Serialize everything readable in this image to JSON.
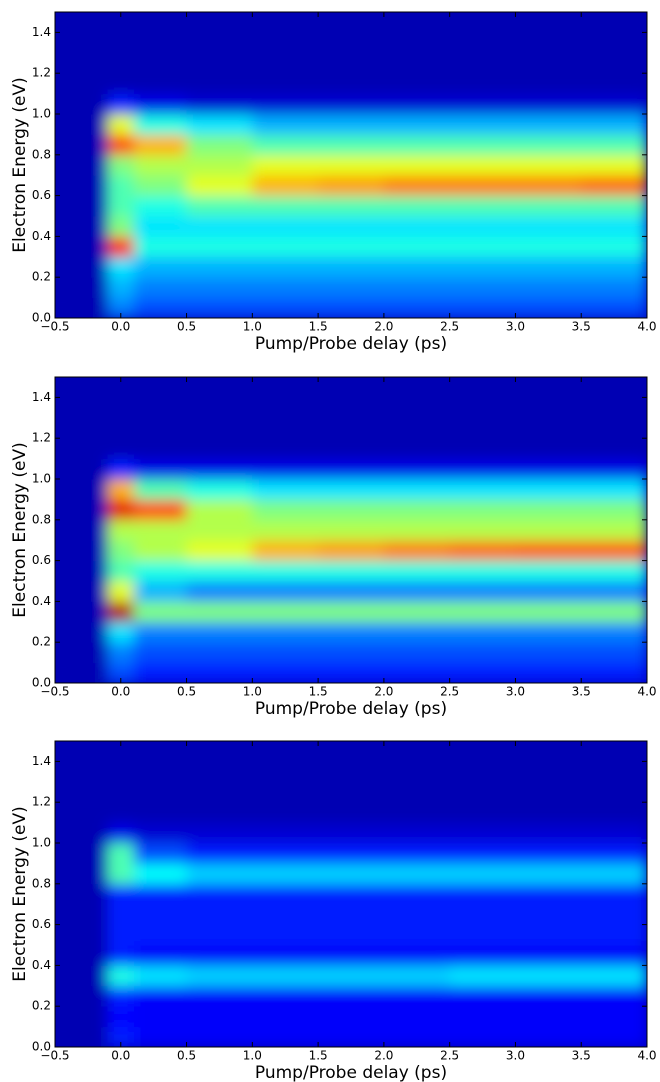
{
  "chart_data": [
    {
      "type": "heatmap",
      "xlabel": "Pump/Probe delay (ps)",
      "ylabel": "Electron Energy (eV)",
      "colormap": "jet",
      "zlim": [
        0,
        1
      ],
      "xlim": [
        -0.5,
        4
      ],
      "ylim": [
        0,
        1.5
      ],
      "xticks": [
        {
          "value": -0.5,
          "label": "−0.5"
        },
        {
          "value": 0,
          "label": "0.0"
        },
        0.5,
        {
          "value": 1,
          "label": "1.0"
        },
        1.5,
        {
          "value": 2,
          "label": "2.0"
        },
        2.5,
        {
          "value": 3,
          "label": "3.0"
        },
        3.5,
        {
          "value": 4,
          "label": "4.0"
        }
      ],
      "yticks": [
        {
          "value": 0,
          "label": "0.0"
        },
        0.2,
        0.4,
        0.6,
        0.8,
        {
          "value": 1,
          "label": "1.0"
        },
        1.2,
        1.4
      ],
      "xbins": [
        -0.5,
        -0.1,
        0.1,
        0.5,
        1,
        1.5,
        2,
        2.5,
        3,
        3.5,
        4
      ],
      "ybins": [
        0,
        0.1,
        0.2,
        0.3,
        0.4,
        0.5,
        0.6,
        0.7,
        0.8,
        0.9,
        1,
        1.1,
        1.2,
        1.3,
        1.4,
        1.5
      ],
      "z": [
        [
          0.05,
          0.25,
          0.2,
          0.2,
          0.2,
          0.2,
          0.2,
          0.2,
          0.2,
          0.2
        ],
        [
          0.05,
          0.3,
          0.25,
          0.25,
          0.25,
          0.25,
          0.25,
          0.25,
          0.25,
          0.25
        ],
        [
          0.05,
          0.35,
          0.3,
          0.3,
          0.3,
          0.3,
          0.3,
          0.3,
          0.3,
          0.3
        ],
        [
          0.05,
          0.85,
          0.4,
          0.4,
          0.4,
          0.4,
          0.4,
          0.4,
          0.4,
          0.4
        ],
        [
          0.05,
          0.5,
          0.35,
          0.35,
          0.35,
          0.35,
          0.35,
          0.35,
          0.35,
          0.35
        ],
        [
          0.05,
          0.45,
          0.4,
          0.45,
          0.45,
          0.45,
          0.45,
          0.45,
          0.45,
          0.45
        ],
        [
          0.05,
          0.45,
          0.5,
          0.6,
          0.7,
          0.72,
          0.75,
          0.75,
          0.75,
          0.77
        ],
        [
          0.05,
          0.5,
          0.55,
          0.55,
          0.6,
          0.6,
          0.6,
          0.6,
          0.6,
          0.6
        ],
        [
          0.05,
          0.8,
          0.7,
          0.5,
          0.45,
          0.45,
          0.45,
          0.45,
          0.45,
          0.45
        ],
        [
          0.05,
          0.6,
          0.4,
          0.35,
          0.3,
          0.3,
          0.3,
          0.3,
          0.3,
          0.3
        ],
        [
          0.05,
          0.15,
          0.1,
          0.08,
          0.08,
          0.08,
          0.08,
          0.08,
          0.08,
          0.08
        ],
        [
          0.05,
          0.05,
          0.05,
          0.05,
          0.05,
          0.05,
          0.05,
          0.05,
          0.05,
          0.05
        ],
        [
          0.05,
          0.05,
          0.05,
          0.05,
          0.05,
          0.05,
          0.05,
          0.05,
          0.05,
          0.05
        ],
        [
          0.05,
          0.05,
          0.05,
          0.05,
          0.05,
          0.05,
          0.05,
          0.05,
          0.05,
          0.05
        ],
        [
          0.05,
          0.05,
          0.05,
          0.05,
          0.05,
          0.05,
          0.05,
          0.05,
          0.05,
          0.05
        ]
      ]
    },
    {
      "type": "heatmap",
      "xlabel": "Pump/Probe delay (ps)",
      "ylabel": "Electron Energy (eV)",
      "colormap": "jet",
      "zlim": [
        0,
        1
      ],
      "xlim": [
        -0.5,
        4
      ],
      "ylim": [
        0,
        1.5
      ],
      "xticks": [
        {
          "value": -0.5,
          "label": "−0.5"
        },
        {
          "value": 0,
          "label": "0.0"
        },
        0.5,
        {
          "value": 1,
          "label": "1.0"
        },
        1.5,
        {
          "value": 2,
          "label": "2.0"
        },
        2.5,
        {
          "value": 3,
          "label": "3.0"
        },
        3.5,
        {
          "value": 4,
          "label": "4.0"
        }
      ],
      "yticks": [
        {
          "value": 0,
          "label": "0.0"
        },
        0.2,
        0.4,
        0.6,
        0.8,
        {
          "value": 1,
          "label": "1.0"
        },
        1.2,
        1.4
      ],
      "xbins": [
        -0.5,
        -0.1,
        0.1,
        0.5,
        1,
        1.5,
        2,
        2.5,
        3,
        3.5,
        4
      ],
      "ybins": [
        0,
        0.1,
        0.2,
        0.3,
        0.4,
        0.5,
        0.6,
        0.7,
        0.8,
        0.9,
        1,
        1.1,
        1.2,
        1.3,
        1.4,
        1.5
      ],
      "z": [
        [
          0.05,
          0.2,
          0.15,
          0.15,
          0.15,
          0.15,
          0.15,
          0.15,
          0.15,
          0.15
        ],
        [
          0.05,
          0.25,
          0.2,
          0.2,
          0.2,
          0.2,
          0.2,
          0.2,
          0.2,
          0.2
        ],
        [
          0.05,
          0.35,
          0.25,
          0.25,
          0.25,
          0.25,
          0.25,
          0.25,
          0.25,
          0.25
        ],
        [
          0.05,
          0.95,
          0.5,
          0.5,
          0.5,
          0.5,
          0.5,
          0.5,
          0.5,
          0.5
        ],
        [
          0.05,
          0.6,
          0.3,
          0.25,
          0.25,
          0.25,
          0.25,
          0.25,
          0.25,
          0.25
        ],
        [
          0.05,
          0.45,
          0.4,
          0.4,
          0.4,
          0.4,
          0.4,
          0.4,
          0.4,
          0.4
        ],
        [
          0.05,
          0.5,
          0.55,
          0.6,
          0.7,
          0.72,
          0.75,
          0.77,
          0.78,
          0.78
        ],
        [
          0.05,
          0.55,
          0.55,
          0.55,
          0.55,
          0.55,
          0.55,
          0.55,
          0.55,
          0.55
        ],
        [
          0.05,
          0.9,
          0.8,
          0.55,
          0.5,
          0.5,
          0.5,
          0.5,
          0.5,
          0.5
        ],
        [
          0.05,
          0.7,
          0.45,
          0.4,
          0.35,
          0.35,
          0.35,
          0.35,
          0.35,
          0.35
        ],
        [
          0.05,
          0.15,
          0.1,
          0.1,
          0.1,
          0.1,
          0.1,
          0.1,
          0.1,
          0.1
        ],
        [
          0.05,
          0.05,
          0.05,
          0.05,
          0.05,
          0.05,
          0.05,
          0.05,
          0.05,
          0.05
        ],
        [
          0.05,
          0.05,
          0.05,
          0.05,
          0.05,
          0.05,
          0.05,
          0.05,
          0.05,
          0.05
        ],
        [
          0.05,
          0.05,
          0.05,
          0.05,
          0.05,
          0.05,
          0.05,
          0.05,
          0.05,
          0.05
        ],
        [
          0.05,
          0.05,
          0.05,
          0.05,
          0.05,
          0.05,
          0.05,
          0.05,
          0.05,
          0.05
        ]
      ]
    },
    {
      "type": "heatmap",
      "xlabel": "Pump/Probe delay (ps)",
      "ylabel": "Electron Energy (eV)",
      "colormap": "jet",
      "zlim": [
        0,
        1
      ],
      "xlim": [
        -0.5,
        4
      ],
      "ylim": [
        0,
        1.5
      ],
      "xticks": [
        {
          "value": -0.5,
          "label": "−0.5"
        },
        {
          "value": 0,
          "label": "0.0"
        },
        0.5,
        {
          "value": 1,
          "label": "1.0"
        },
        1.5,
        {
          "value": 2,
          "label": "2.0"
        },
        2.5,
        {
          "value": 3,
          "label": "3.0"
        },
        3.5,
        {
          "value": 4,
          "label": "4.0"
        }
      ],
      "yticks": [
        {
          "value": 0,
          "label": "0.0"
        },
        0.2,
        0.4,
        0.6,
        0.8,
        {
          "value": 1,
          "label": "1.0"
        },
        1.2,
        1.4
      ],
      "xbins": [
        -0.5,
        -0.1,
        0.1,
        0.5,
        1,
        1.5,
        2,
        2.5,
        3,
        3.5,
        4
      ],
      "ybins": [
        0,
        0.1,
        0.2,
        0.3,
        0.4,
        0.5,
        0.6,
        0.7,
        0.8,
        0.9,
        1,
        1.1,
        1.2,
        1.3,
        1.4,
        1.5
      ],
      "z": [
        [
          0.05,
          0.15,
          0.12,
          0.12,
          0.12,
          0.12,
          0.12,
          0.12,
          0.12,
          0.12
        ],
        [
          0.05,
          0.13,
          0.12,
          0.12,
          0.12,
          0.12,
          0.12,
          0.12,
          0.12,
          0.12
        ],
        [
          0.05,
          0.15,
          0.12,
          0.12,
          0.12,
          0.12,
          0.12,
          0.12,
          0.12,
          0.12
        ],
        [
          0.05,
          0.4,
          0.35,
          0.33,
          0.33,
          0.33,
          0.33,
          0.35,
          0.35,
          0.35
        ],
        [
          0.05,
          0.15,
          0.12,
          0.12,
          0.12,
          0.12,
          0.12,
          0.12,
          0.12,
          0.12
        ],
        [
          0.05,
          0.15,
          0.15,
          0.15,
          0.15,
          0.15,
          0.15,
          0.15,
          0.15,
          0.15
        ],
        [
          0.05,
          0.15,
          0.15,
          0.15,
          0.15,
          0.15,
          0.15,
          0.15,
          0.15,
          0.15
        ],
        [
          0.05,
          0.15,
          0.15,
          0.15,
          0.15,
          0.15,
          0.15,
          0.15,
          0.15,
          0.15
        ],
        [
          0.05,
          0.45,
          0.38,
          0.33,
          0.33,
          0.33,
          0.33,
          0.33,
          0.33,
          0.33
        ],
        [
          0.05,
          0.45,
          0.2,
          0.15,
          0.15,
          0.15,
          0.15,
          0.15,
          0.15,
          0.15
        ],
        [
          0.05,
          0.1,
          0.08,
          0.08,
          0.08,
          0.08,
          0.08,
          0.08,
          0.08,
          0.08
        ],
        [
          0.05,
          0.05,
          0.05,
          0.05,
          0.05,
          0.05,
          0.05,
          0.05,
          0.05,
          0.05
        ],
        [
          0.05,
          0.05,
          0.05,
          0.05,
          0.05,
          0.05,
          0.05,
          0.05,
          0.05,
          0.05
        ],
        [
          0.05,
          0.05,
          0.05,
          0.05,
          0.05,
          0.05,
          0.05,
          0.05,
          0.05,
          0.05
        ],
        [
          0.05,
          0.05,
          0.05,
          0.05,
          0.05,
          0.05,
          0.05,
          0.05,
          0.05,
          0.05
        ]
      ]
    }
  ]
}
